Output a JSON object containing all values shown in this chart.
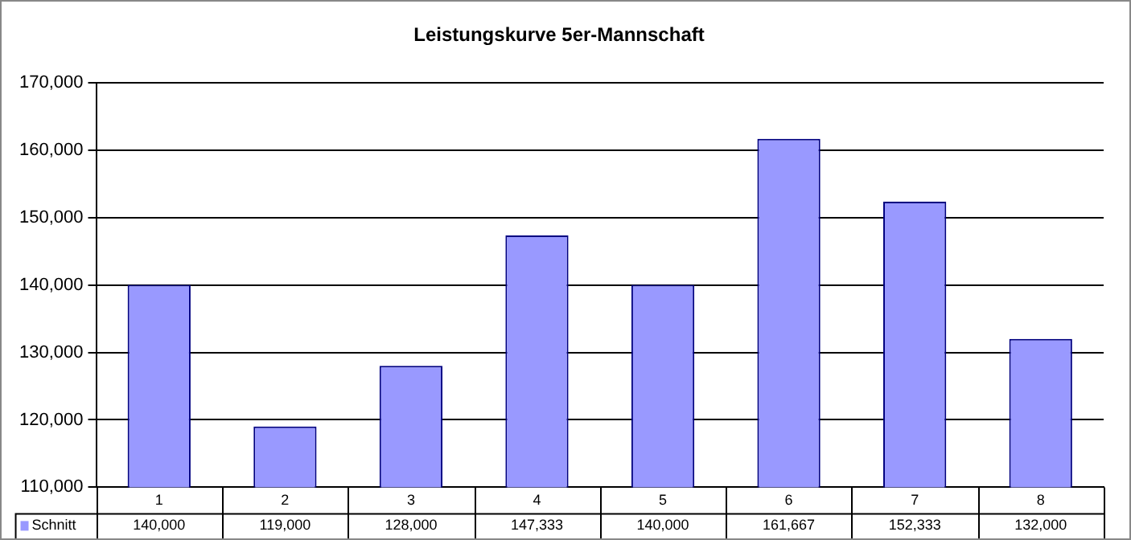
{
  "chart_data": {
    "type": "bar",
    "title": "Leistungskurve 5er-Mannschaft",
    "categories": [
      "1",
      "2",
      "3",
      "4",
      "5",
      "6",
      "7",
      "8"
    ],
    "series": [
      {
        "name": "Schnitt",
        "color": "#9999ff",
        "values": [
          140000,
          119000,
          128000,
          147333,
          140000,
          161667,
          152333,
          132000
        ],
        "value_labels": [
          "140,000",
          "119,000",
          "128,000",
          "147,333",
          "140,000",
          "161,667",
          "152,333",
          "132,000"
        ]
      }
    ],
    "ylim": [
      110000,
      170000
    ],
    "yticks": [
      {
        "value": 110000,
        "label": "110,000"
      },
      {
        "value": 120000,
        "label": "120,000"
      },
      {
        "value": 130000,
        "label": "130,000"
      },
      {
        "value": 140000,
        "label": "140,000"
      },
      {
        "value": 150000,
        "label": "150,000"
      },
      {
        "value": 160000,
        "label": "160,000"
      },
      {
        "value": 170000,
        "label": "170,000"
      }
    ],
    "grid": "y"
  }
}
